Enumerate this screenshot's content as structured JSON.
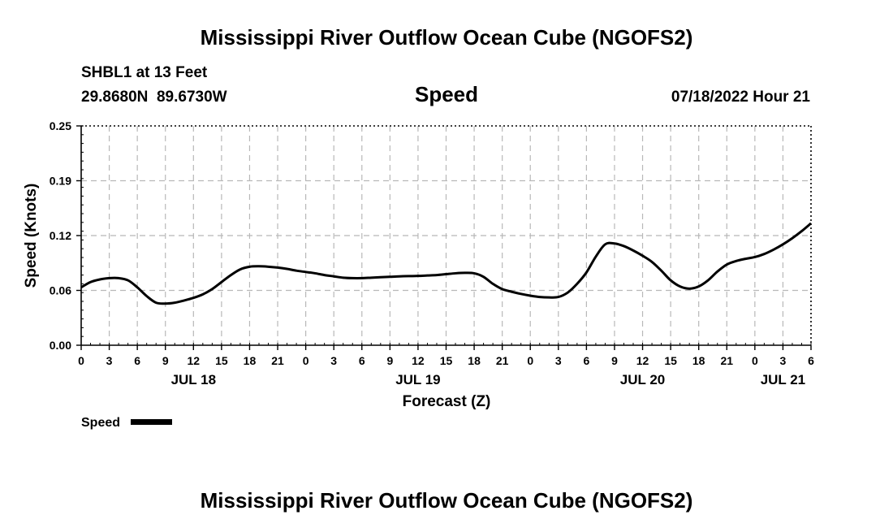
{
  "page_title": "Mississippi River Outflow Ocean Cube (NGOFS2)",
  "footer_title": "Mississippi River Outflow Ocean Cube (NGOFS2)",
  "station": {
    "name_line": "SHBL1 at 13 Feet",
    "coords_line": "29.8680N  89.6730W"
  },
  "panel_title": "Speed",
  "forecast_time": "07/18/2022 Hour 21",
  "legend": {
    "label": "Speed"
  },
  "colors": {
    "line": "#000000",
    "grid": "#b8b8b8",
    "axis": "#000000",
    "background": "#ffffff"
  },
  "chart_data": {
    "type": "line",
    "title": "Speed",
    "xlabel": "Forecast (Z)",
    "ylabel": "Speed (Knots)",
    "grid": true,
    "xlim": [
      0,
      78
    ],
    "ylim": [
      0.0,
      0.25
    ],
    "y_ticks": [
      "0.00",
      "0.06",
      "0.12",
      "0.19",
      "0.25"
    ],
    "y_tick_values": [
      0.0,
      0.0625,
      0.125,
      0.1875,
      0.25
    ],
    "x_tick_hours": [
      0,
      3,
      6,
      9,
      12,
      15,
      18,
      21,
      24,
      27,
      30,
      33,
      36,
      39,
      42,
      45,
      48,
      51,
      54,
      57,
      60,
      63,
      66,
      69,
      72,
      75,
      78
    ],
    "x_tick_labels": [
      "0",
      "3",
      "6",
      "9",
      "12",
      "15",
      "18",
      "21",
      "0",
      "3",
      "6",
      "9",
      "12",
      "15",
      "18",
      "21",
      "0",
      "3",
      "6",
      "9",
      "12",
      "15",
      "18",
      "21",
      "0",
      "3",
      "6"
    ],
    "date_labels": [
      {
        "hour": 12,
        "label": "JUL 18"
      },
      {
        "hour": 36,
        "label": "JUL 19"
      },
      {
        "hour": 60,
        "label": "JUL 20"
      },
      {
        "hour": 75,
        "label": "JUL 21"
      }
    ],
    "series": [
      {
        "name": "Speed",
        "x": [
          0,
          1,
          2,
          3,
          4,
          5,
          6,
          7,
          8,
          9,
          10,
          11,
          12,
          13,
          14,
          15,
          16,
          17,
          18,
          19,
          20,
          21,
          22,
          23,
          24,
          25,
          26,
          27,
          28,
          29,
          30,
          31,
          32,
          33,
          34,
          35,
          36,
          37,
          38,
          39,
          40,
          41,
          42,
          43,
          44,
          45,
          46,
          47,
          48,
          49,
          50,
          51,
          52,
          53,
          54,
          55,
          56,
          57,
          58,
          59,
          60,
          61,
          62,
          63,
          64,
          65,
          66,
          67,
          68,
          69,
          70,
          71,
          72,
          73,
          74,
          75,
          76,
          77,
          78
        ],
        "values": [
          0.066,
          0.072,
          0.075,
          0.0765,
          0.0765,
          0.074,
          0.066,
          0.056,
          0.0485,
          0.0475,
          0.0485,
          0.051,
          0.054,
          0.058,
          0.064,
          0.072,
          0.08,
          0.0865,
          0.0895,
          0.09,
          0.0895,
          0.0885,
          0.087,
          0.085,
          0.0835,
          0.082,
          0.08,
          0.0785,
          0.077,
          0.0765,
          0.0765,
          0.077,
          0.0775,
          0.078,
          0.0785,
          0.0788,
          0.079,
          0.0795,
          0.08,
          0.081,
          0.082,
          0.0825,
          0.082,
          0.078,
          0.07,
          0.064,
          0.061,
          0.0585,
          0.0565,
          0.055,
          0.0545,
          0.055,
          0.06,
          0.07,
          0.083,
          0.101,
          0.115,
          0.116,
          0.113,
          0.108,
          0.102,
          0.095,
          0.085,
          0.074,
          0.067,
          0.0645,
          0.067,
          0.074,
          0.084,
          0.092,
          0.096,
          0.0985,
          0.1005,
          0.104,
          0.109,
          0.115,
          0.122,
          0.13,
          0.139
        ]
      }
    ]
  }
}
